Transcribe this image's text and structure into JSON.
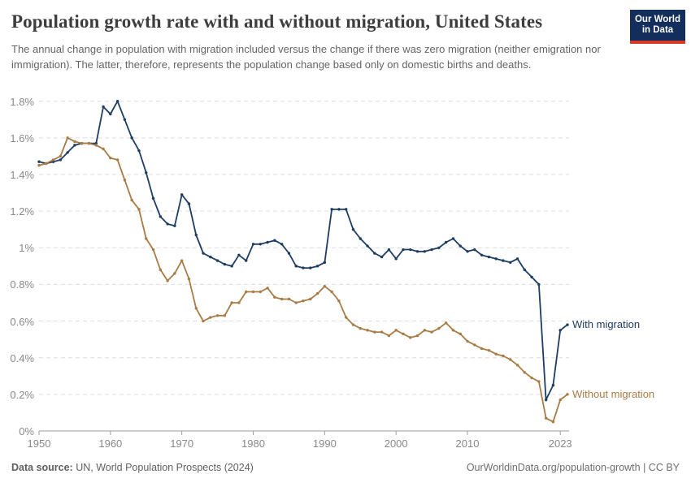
{
  "header": {
    "title": "Population growth rate with and without migration, United States",
    "subtitle": "The annual change in population with migration included versus the change if there was zero migration (neither emigration nor immigration). The latter, therefore, represents the population change based only on domestic births and deaths.",
    "logo": {
      "line1": "Our World",
      "line2": "in Data"
    }
  },
  "footer": {
    "source_label": "Data source:",
    "source_text": " UN, World Population Prospects (2024)",
    "link_text": "OurWorldinData.org/population-growth | CC BY"
  },
  "colors": {
    "with_migration": "#1d3d63",
    "without_migration": "#a87c45",
    "grid": "#dedede",
    "axis": "#9e9e9e",
    "tick_text": "#898989",
    "logo_bg": "#132e5d",
    "logo_stripe": "#d73a2b"
  },
  "chart_data": {
    "type": "line",
    "title": "Population growth rate with and without migration, United States",
    "xlabel": "",
    "ylabel": "",
    "xlim": [
      1950,
      2024
    ],
    "ylim": [
      0,
      1.8
    ],
    "grid": "dashed-horizontal",
    "legend_position": "line-end-labels",
    "xticks": [
      "1950",
      "1960",
      "1970",
      "1980",
      "1990",
      "2000",
      "2010",
      "2023"
    ],
    "xtick_years": [
      1950,
      1960,
      1970,
      1980,
      1990,
      2000,
      2010,
      2023
    ],
    "ytick_labels": [
      "0%",
      "0.2%",
      "0.4%",
      "0.6%",
      "0.8%",
      "1%",
      "1.2%",
      "1.4%",
      "1.6%",
      "1.8%"
    ],
    "ytick_values": [
      0,
      0.2,
      0.4,
      0.6,
      0.8,
      1.0,
      1.2,
      1.4,
      1.6,
      1.8
    ],
    "x": [
      1950,
      1951,
      1952,
      1953,
      1954,
      1955,
      1956,
      1957,
      1958,
      1959,
      1960,
      1961,
      1962,
      1963,
      1964,
      1965,
      1966,
      1967,
      1968,
      1969,
      1970,
      1971,
      1972,
      1973,
      1974,
      1975,
      1976,
      1977,
      1978,
      1979,
      1980,
      1981,
      1982,
      1983,
      1984,
      1985,
      1986,
      1987,
      1988,
      1989,
      1990,
      1991,
      1992,
      1993,
      1994,
      1995,
      1996,
      1997,
      1998,
      1999,
      2000,
      2001,
      2002,
      2003,
      2004,
      2005,
      2006,
      2007,
      2008,
      2009,
      2010,
      2011,
      2012,
      2013,
      2014,
      2015,
      2016,
      2017,
      2018,
      2019,
      2020,
      2021,
      2022,
      2023,
      2024
    ],
    "series": [
      {
        "name": "With migration",
        "color": "#1d3d63",
        "values": [
          1.47,
          1.46,
          1.47,
          1.48,
          1.52,
          1.56,
          1.57,
          1.57,
          1.57,
          1.77,
          1.73,
          1.8,
          1.7,
          1.6,
          1.53,
          1.41,
          1.27,
          1.17,
          1.13,
          1.12,
          1.29,
          1.24,
          1.07,
          0.97,
          0.95,
          0.93,
          0.91,
          0.9,
          0.96,
          0.93,
          1.02,
          1.02,
          1.03,
          1.04,
          1.02,
          0.97,
          0.9,
          0.89,
          0.89,
          0.9,
          0.92,
          1.21,
          1.21,
          1.21,
          1.1,
          1.05,
          1.01,
          0.97,
          0.95,
          0.99,
          0.94,
          0.99,
          0.99,
          0.98,
          0.98,
          0.99,
          1.0,
          1.03,
          1.05,
          1.01,
          0.98,
          0.99,
          0.96,
          0.95,
          0.94,
          0.93,
          0.92,
          0.94,
          0.88,
          0.84,
          0.8,
          0.17,
          0.25,
          0.55,
          0.58
        ]
      },
      {
        "name": "Without migration",
        "color": "#a87c45",
        "values": [
          1.45,
          1.46,
          1.48,
          1.5,
          1.6,
          1.58,
          1.57,
          1.57,
          1.56,
          1.54,
          1.49,
          1.48,
          1.37,
          1.26,
          1.21,
          1.05,
          0.99,
          0.88,
          0.82,
          0.86,
          0.93,
          0.83,
          0.67,
          0.6,
          0.62,
          0.63,
          0.63,
          0.7,
          0.7,
          0.76,
          0.76,
          0.76,
          0.78,
          0.73,
          0.72,
          0.72,
          0.7,
          0.71,
          0.72,
          0.75,
          0.79,
          0.76,
          0.71,
          0.62,
          0.58,
          0.56,
          0.55,
          0.54,
          0.54,
          0.52,
          0.55,
          0.53,
          0.51,
          0.52,
          0.55,
          0.54,
          0.56,
          0.59,
          0.55,
          0.53,
          0.49,
          0.47,
          0.45,
          0.44,
          0.42,
          0.41,
          0.39,
          0.36,
          0.32,
          0.29,
          0.27,
          0.07,
          0.05,
          0.17,
          0.2
        ]
      }
    ]
  }
}
